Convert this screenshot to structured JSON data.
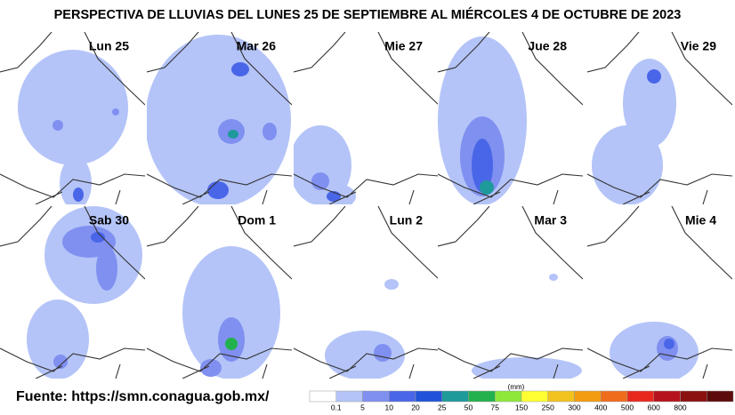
{
  "title": "PERSPECTIVA DE LLUVIAS DEL LUNES 25 DE SEPTIEMBRE AL MIÉRCOLES 4 DE OCTUBRE DE 2023",
  "panels": [
    "Lun 25",
    "Mar 26",
    "Mie 27",
    "Jue 28",
    "Vie 29",
    "Sab 30",
    "Dom 1",
    "Lun 2",
    "Mar 3",
    "Mie 4"
  ],
  "source": "Fuente: https://smn.conagua.gob.mx/",
  "legend": {
    "unit": "(mm)",
    "colors": [
      "#ffffff",
      "#b4c4f8",
      "#8090f0",
      "#4a66e8",
      "#1f52d8",
      "#1e9a9a",
      "#22b14c",
      "#8ee83a",
      "#ffff33",
      "#f2c21e",
      "#f39c12",
      "#ef6c1c",
      "#e8271d",
      "#b5121b",
      "#8b1010",
      "#5c0a0a"
    ],
    "ticks": [
      0.1,
      5,
      10,
      20,
      25,
      50,
      75,
      150,
      250,
      300,
      400,
      500,
      600,
      800
    ]
  }
}
